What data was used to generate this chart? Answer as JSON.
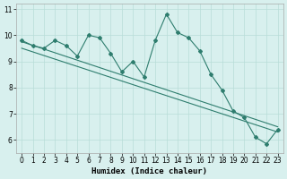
{
  "line1_x": [
    0,
    1,
    2,
    3,
    4,
    5,
    6,
    7,
    8,
    9,
    10,
    11,
    12,
    13,
    14,
    15,
    16,
    17,
    18,
    19,
    20,
    21,
    22,
    23
  ],
  "line1_y": [
    9.8,
    9.6,
    9.5,
    9.8,
    9.6,
    9.2,
    10.0,
    9.9,
    9.3,
    8.6,
    9.0,
    8.4,
    9.8,
    10.8,
    10.1,
    9.9,
    9.4,
    8.5,
    7.9,
    7.1,
    6.85,
    6.1,
    5.85,
    6.4
  ],
  "line2_x": [
    0,
    23
  ],
  "line2_y": [
    9.75,
    6.5
  ],
  "line3_x": [
    0,
    23
  ],
  "line3_y": [
    9.55,
    6.3
  ],
  "color": "#2e7d6e",
  "bg_color": "#d8f0ee",
  "grid_color": "#b8ddd8",
  "xlabel": "Humidex (Indice chaleur)",
  "xlim": [
    -0.5,
    23.5
  ],
  "ylim": [
    5.5,
    11.2
  ],
  "yticks": [
    6,
    7,
    8,
    9,
    10,
    11
  ],
  "xticks": [
    0,
    1,
    2,
    3,
    4,
    5,
    6,
    7,
    8,
    9,
    10,
    11,
    12,
    13,
    14,
    15,
    16,
    17,
    18,
    19,
    20,
    21,
    22,
    23
  ]
}
